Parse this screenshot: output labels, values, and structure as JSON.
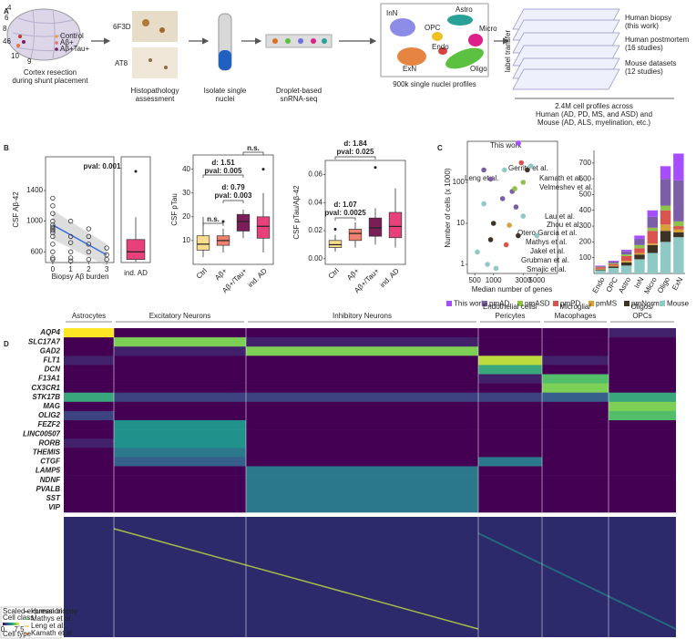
{
  "panel_labels": [
    "A",
    "B",
    "C",
    "D"
  ],
  "overview": {
    "brain_areas": [
      4,
      6,
      8,
      46,
      10,
      9
    ],
    "groups": [
      "Control",
      "Aβ+",
      "Aβ+Tau+"
    ],
    "cortex_caption": [
      "Cortex resection",
      "during shunt placement"
    ],
    "stains": [
      "6F3D",
      "AT8"
    ],
    "histo_caption": [
      "Histopathology",
      "assessment"
    ],
    "isolate_caption": [
      "Isolate single",
      "nuclei"
    ],
    "droplet_caption": [
      "Droplet-based",
      "snRNA-seq"
    ],
    "umap_labels": [
      "InN",
      "Astro",
      "Micro",
      "OPC",
      "Endo",
      "Oligo",
      "ExN"
    ],
    "umap_caption": "900k single nuclei profiles",
    "transfer_label": "label transfer",
    "datasets": [
      [
        "Human biopsy",
        "(this work)"
      ],
      [
        "Human postmortem",
        "(16 studies)"
      ],
      [
        "Mouse datasets",
        "(12 studies)"
      ]
    ],
    "summary": [
      "2.4M cell profiles across",
      "Human (AD, PD, MS, and ASD) and",
      "Mouse (AD, ALS, myelination, etc.)"
    ]
  },
  "chart_data": [
    {
      "type": "scatter",
      "y_label": "CSF Aβ-42",
      "x_label": "Biopsy Aβ burden",
      "frame": true,
      "xlim": [
        -0.4,
        3.4
      ],
      "xticks": [
        0,
        1,
        2,
        3
      ],
      "ylim": [
        460,
        1840
      ],
      "yticks": [
        600,
        1000,
        1400
      ],
      "color": "#333333",
      "x": [
        0,
        0,
        0,
        0,
        0,
        0,
        0,
        0,
        0,
        0,
        0,
        0,
        0,
        0,
        1,
        1,
        1,
        1,
        1,
        1,
        2,
        2,
        2,
        2,
        2,
        3,
        3,
        3
      ],
      "values": [
        1300,
        1200,
        1100,
        1000,
        950,
        920,
        900,
        880,
        850,
        800,
        700,
        600,
        520,
        500,
        1000,
        800,
        720,
        600,
        520,
        480,
        900,
        800,
        700,
        600,
        500,
        650,
        560,
        500
      ],
      "trend": {
        "x": [
          0,
          3
        ],
        "values": [
          950,
          560
        ],
        "color": "#3a6fd8"
      },
      "annotations": [
        "pval: 0.001"
      ]
    },
    {
      "type": "box",
      "frame": true,
      "ylim": [
        460,
        1840
      ],
      "categories": [
        "ind. AD"
      ],
      "colors": [
        "#e8407a"
      ],
      "boxes": [
        {
          "low": 470,
          "q1": 500,
          "median": 600,
          "q3": 760,
          "high": 1050,
          "outliers": [
            1650
          ]
        }
      ]
    },
    {
      "type": "box",
      "frame": true,
      "y_label": "CSF pTau",
      "ylim": [
        0,
        46
      ],
      "yticks": [
        10,
        20,
        30,
        40
      ],
      "categories": [
        "Ctrl",
        "Aβ+",
        "Aβ+/Tau+",
        "ind. AD"
      ],
      "colors": [
        "#f9dc8c",
        "#f08070",
        "#7a1e5a",
        "#e8407a"
      ],
      "boxes": [
        {
          "low": 3,
          "q1": 6,
          "median": 8.5,
          "q3": 12,
          "high": 20,
          "outliers": []
        },
        {
          "low": 5,
          "q1": 8,
          "median": 10,
          "q3": 12,
          "high": 15,
          "outliers": [
            18
          ]
        },
        {
          "low": 11,
          "q1": 14,
          "median": 18,
          "q3": 21,
          "high": 23,
          "outliers": []
        },
        {
          "low": 5,
          "q1": 11,
          "median": 16,
          "q3": 20,
          "high": 30,
          "outliers": [
            40
          ]
        }
      ],
      "annotations": [
        "n.s.",
        "d: 1.51",
        "pval: 0.005",
        "d: 0.79",
        "pval: 0.003",
        "n.s."
      ]
    },
    {
      "type": "box",
      "frame": true,
      "y_label": "CSF pTau/Aβ-42",
      "ylim": [
        -0.004,
        0.07
      ],
      "yticks": [
        {
          "value": 0,
          "label": "0.00"
        },
        {
          "value": 0.02,
          "label": "0.02"
        },
        {
          "value": 0.04,
          "label": "0.04"
        },
        {
          "value": 0.06,
          "label": "0.06"
        }
      ],
      "categories": [
        "Ctrl",
        "Aβ+",
        "Aβ+/Tau+",
        "ind. AD"
      ],
      "colors": [
        "#f9dc8c",
        "#f08070",
        "#7a1e5a",
        "#e8407a"
      ],
      "boxes": [
        {
          "low": 0.005,
          "q1": 0.008,
          "median": 0.01,
          "q3": 0.013,
          "high": 0.017,
          "outliers": [
            0.021
          ]
        },
        {
          "low": 0.008,
          "q1": 0.013,
          "median": 0.018,
          "q3": 0.021,
          "high": 0.026,
          "outliers": []
        },
        {
          "low": 0.01,
          "q1": 0.016,
          "median": 0.022,
          "q3": 0.029,
          "high": 0.036,
          "outliers": [
            0.065
          ]
        },
        {
          "low": 0.008,
          "q1": 0.015,
          "median": 0.023,
          "q3": 0.033,
          "high": 0.05,
          "outliers": []
        }
      ],
      "annotations": [
        "d: 1.84",
        "pval: 0.025",
        "d: 1.07",
        "pval: 0.0025"
      ]
    },
    {
      "type": "scatter",
      "frame": true,
      "y_label": "Number of cells (x 1000)",
      "x_label": "Median number of genes",
      "xscale": "log",
      "yscale": "log",
      "xlim": [
        380,
        10700
      ],
      "xticks": [
        500,
        1000,
        3000,
        5000
      ],
      "ylim": [
        0.6,
        1000
      ],
      "yticks": [
        1,
        10,
        100
      ],
      "series": [
        {
          "name": "This work",
          "color": "#a64dff",
          "x": [
            2500
          ],
          "values": [
            900
          ]
        },
        {
          "name": "pmAD",
          "color": "#7b5ea7",
          "x": [
            700,
            900,
            1400,
            2000,
            2300
          ],
          "values": [
            200,
            120,
            40,
            60,
            25
          ]
        },
        {
          "name": "pmASD",
          "color": "#8fc24a",
          "x": [
            2200,
            3000
          ],
          "values": [
            70,
            100
          ]
        },
        {
          "name": "pmPD",
          "color": "#d9534f",
          "x": [
            2800,
            1600
          ],
          "values": [
            300,
            3
          ]
        },
        {
          "name": "pmMS",
          "color": "#d9a03a",
          "x": [
            1800
          ],
          "values": [
            9
          ]
        },
        {
          "name": "pmNormal",
          "color": "#3d3325",
          "x": [
            1000,
            2500,
            900,
            3500
          ],
          "values": [
            10,
            5,
            4,
            200
          ]
        },
        {
          "name": "Mouse",
          "color": "#8fc9c6",
          "x": [
            550,
            800,
            1100,
            1500,
            4000,
            5000,
            700,
            3000
          ],
          "values": [
            2,
            1,
            0.8,
            200,
            250,
            5,
            30,
            15
          ]
        }
      ],
      "annotations": [
        "This work",
        "Gerrits et al.",
        "Kamath et al.",
        "Leng et al.",
        "Velmeshev et al.",
        "Lau et al.",
        "Zhou et al.",
        "Otero Garcia et al.",
        "Mathys et al.",
        "Jakel et al.",
        "Grubman et al.",
        "Smajic et al."
      ]
    },
    {
      "type": "bar",
      "stacked": true,
      "ylim": [
        0,
        780
      ],
      "yticks": [
        100,
        200,
        300,
        400,
        500,
        600,
        700
      ],
      "categories": [
        "Endo",
        "OPC",
        "Astro",
        "InN",
        "Micro",
        "Oligo",
        "ExN"
      ],
      "series": [
        {
          "color": "#8fc9c6",
          "values": [
            20,
            35,
            50,
            90,
            130,
            200,
            230
          ]
        },
        {
          "color": "#3d3325",
          "values": [
            5,
            10,
            20,
            30,
            50,
            70,
            30
          ]
        },
        {
          "color": "#d9a03a",
          "values": [
            5,
            5,
            10,
            10,
            10,
            40,
            20
          ]
        },
        {
          "color": "#d9534f",
          "values": [
            10,
            10,
            30,
            30,
            80,
            90,
            20
          ]
        },
        {
          "color": "#8fc24a",
          "values": [
            2,
            5,
            10,
            20,
            20,
            30,
            30
          ]
        },
        {
          "color": "#7b5ea7",
          "values": [
            5,
            10,
            20,
            40,
            70,
            170,
            260
          ]
        },
        {
          "color": "#a64dff",
          "values": [
            3,
            5,
            10,
            20,
            40,
            80,
            170
          ]
        }
      ]
    }
  ],
  "heatmap": {
    "groups": [
      [
        "Astrocytes"
      ],
      [
        "Excitatory Neurons"
      ],
      [
        "Inhibitory Neurons"
      ],
      [
        "Endothelial cells/",
        "Pericytes"
      ],
      [
        "Microglia/",
        "Macophages"
      ],
      [
        "Oligos/",
        "OPCs"
      ]
    ],
    "rows": [
      "AQP4",
      "SLC17A7",
      "GAD2",
      "FLT1",
      "DCN",
      "F13A1",
      "CX3CR1",
      "STK17B",
      "MAG",
      "OLIG2",
      "FEZF2",
      "LINC00507",
      "RORB",
      "THEMIS",
      "CTGF",
      "LAMP5",
      "NDNF",
      "PVALB",
      "SST",
      "VIP"
    ],
    "values": [
      [
        1,
        0,
        0,
        0,
        0,
        0.1
      ],
      [
        0,
        0.8,
        0.1,
        0,
        0,
        0
      ],
      [
        0,
        0.1,
        0.8,
        0,
        0,
        0
      ],
      [
        0.1,
        0,
        0,
        0.9,
        0.1,
        0
      ],
      [
        0,
        0,
        0,
        0.6,
        0,
        0
      ],
      [
        0,
        0,
        0,
        0.1,
        0.7,
        0
      ],
      [
        0,
        0,
        0,
        0,
        0.8,
        0
      ],
      [
        0.6,
        0.2,
        0.2,
        0.2,
        0.3,
        0.6
      ],
      [
        0,
        0,
        0,
        0,
        0,
        0.8
      ],
      [
        0.2,
        0,
        0,
        0,
        0,
        0.7
      ],
      [
        0,
        0.5,
        0,
        0,
        0,
        0
      ],
      [
        0,
        0.5,
        0,
        0,
        0,
        0
      ],
      [
        0.1,
        0.5,
        0,
        0,
        0,
        0
      ],
      [
        0,
        0.4,
        0,
        0,
        0,
        0
      ],
      [
        0,
        0.3,
        0,
        0.4,
        0,
        0
      ],
      [
        0,
        0,
        0.4,
        0,
        0,
        0
      ],
      [
        0,
        0,
        0.4,
        0,
        0,
        0
      ],
      [
        0,
        0,
        0.4,
        0,
        0,
        0
      ],
      [
        0,
        0,
        0.4,
        0,
        0,
        0
      ],
      [
        0,
        0,
        0.4,
        0,
        0,
        0
      ]
    ]
  },
  "expression_legend": {
    "scale_title": "Scaled expression",
    "class_title": "Cell class",
    "ticks": [
      0,
      7.5
    ],
    "type_title": "Cell type",
    "datasets": [
      "Human biopsy",
      "Mathys et al.",
      "Leng et al.",
      "Kamath et al."
    ]
  }
}
